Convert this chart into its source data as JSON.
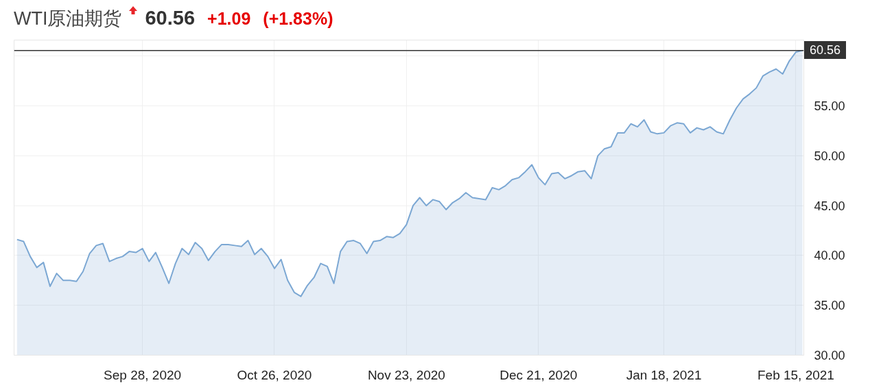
{
  "chart_data": {
    "type": "area",
    "title": "WTI原油期货",
    "annotations": [
      "60.56",
      "+1.09",
      "(+1.83%)"
    ],
    "categories": [
      null,
      null,
      null,
      null,
      null,
      null,
      null,
      null,
      null,
      null,
      null,
      null,
      null,
      null,
      null,
      null,
      null,
      null,
      null,
      "Sep 28, 2020",
      null,
      null,
      null,
      null,
      null,
      null,
      null,
      null,
      null,
      null,
      null,
      null,
      null,
      null,
      null,
      null,
      null,
      null,
      null,
      "Oct 26, 2020",
      null,
      null,
      null,
      null,
      null,
      null,
      null,
      null,
      null,
      null,
      null,
      null,
      null,
      null,
      null,
      null,
      null,
      null,
      null,
      "Nov 23, 2020",
      null,
      null,
      null,
      null,
      null,
      null,
      null,
      null,
      null,
      null,
      null,
      null,
      null,
      null,
      null,
      null,
      null,
      null,
      null,
      "Dec 21, 2020",
      null,
      null,
      null,
      null,
      null,
      null,
      null,
      null,
      null,
      null,
      null,
      null,
      null,
      null,
      null,
      null,
      null,
      null,
      "Jan 18, 2021",
      null,
      null,
      null,
      null,
      null,
      null,
      null,
      null,
      null,
      null,
      null,
      null,
      null,
      null,
      null,
      null,
      null,
      null,
      null,
      "Feb 15, 2021",
      null
    ],
    "series": [
      {
        "color": "#7ba7d3",
        "values": [
          41.6,
          41.4,
          39.9,
          38.8,
          39.3,
          36.9,
          38.2,
          37.5,
          37.5,
          37.4,
          38.4,
          40.2,
          41.0,
          41.2,
          39.4,
          39.7,
          39.9,
          40.4,
          40.3,
          40.7,
          39.4,
          40.3,
          38.8,
          37.2,
          39.2,
          40.7,
          40.1,
          41.3,
          40.7,
          39.5,
          40.4,
          41.1,
          41.1,
          41.0,
          40.9,
          41.5,
          40.1,
          40.7,
          39.9,
          38.7,
          39.6,
          37.5,
          36.3,
          35.9,
          37.0,
          37.8,
          39.2,
          38.9,
          37.2,
          40.4,
          41.4,
          41.5,
          41.2,
          40.2,
          41.4,
          41.5,
          41.9,
          41.8,
          42.2,
          43.1,
          45.0,
          45.8,
          45.0,
          45.6,
          45.4,
          44.6,
          45.3,
          45.7,
          46.3,
          45.8,
          45.7,
          45.6,
          46.8,
          46.6,
          47.0,
          47.6,
          47.8,
          48.4,
          49.1,
          47.8,
          47.1,
          48.2,
          48.3,
          47.7,
          48.0,
          48.4,
          48.5,
          47.7,
          50.0,
          50.7,
          50.9,
          52.3,
          52.3,
          53.2,
          52.9,
          53.6,
          52.4,
          52.2,
          52.3,
          53.0,
          53.3,
          53.2,
          52.3,
          52.8,
          52.6,
          52.9,
          52.4,
          52.2,
          53.6,
          54.8,
          55.7,
          56.2,
          56.8,
          58.0,
          58.4,
          58.7,
          58.2,
          59.5,
          60.4,
          60.56
        ]
      }
    ],
    "ylim": [
      30,
      61.6
    ],
    "yticks": [
      {
        "value": 30,
        "label": "30.00"
      },
      {
        "value": 35,
        "label": "35.00"
      },
      {
        "value": 40,
        "label": "40.00"
      },
      {
        "value": 45,
        "label": "45.00"
      },
      {
        "value": 50,
        "label": "50.00"
      },
      {
        "value": 55,
        "label": "55.00"
      },
      {
        "value": 60,
        "label": null
      }
    ],
    "ref_lines": [
      {
        "axis": "y",
        "value": 60.56,
        "label": "60.56",
        "color": "#333333"
      }
    ],
    "grid": true
  }
}
